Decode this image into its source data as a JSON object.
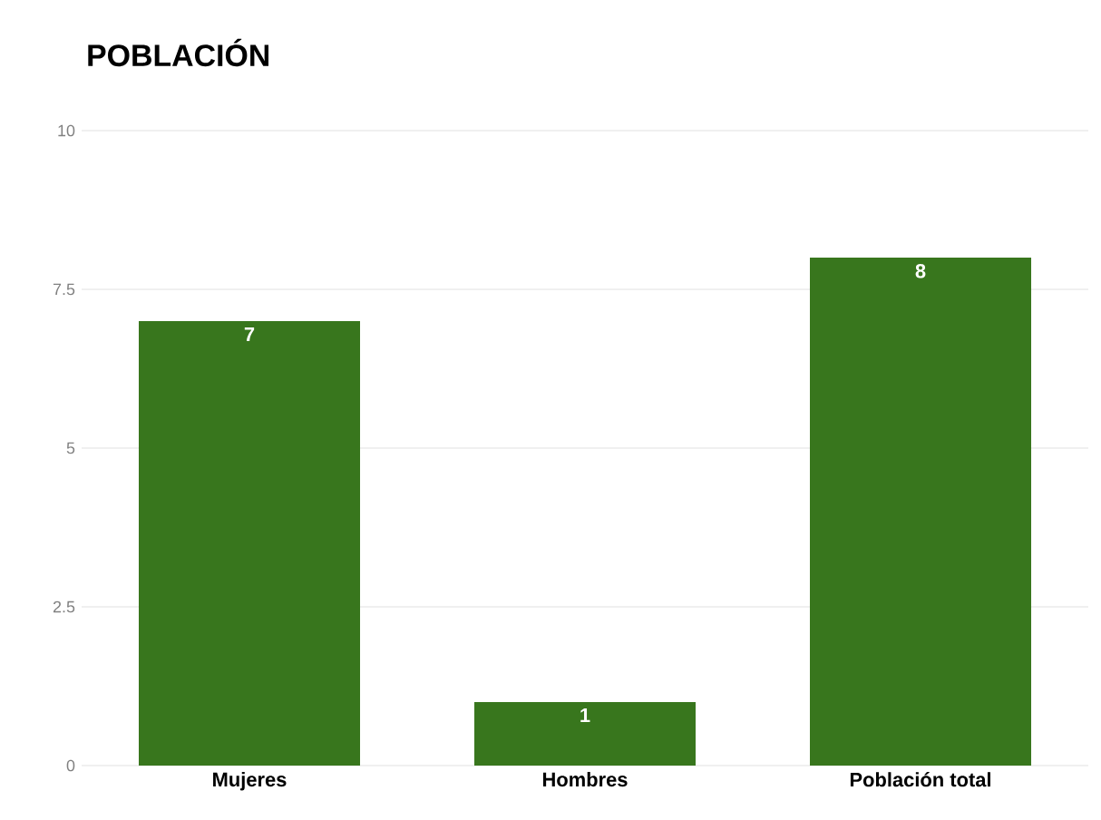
{
  "chart_data": {
    "type": "bar",
    "title": "POBLACIÓN",
    "categories": [
      "Mujeres",
      "Hombres",
      "Población total"
    ],
    "values": [
      7,
      1,
      8
    ],
    "color": "#38761d",
    "ylim": [
      0,
      10
    ],
    "yticks": [
      0,
      2.5,
      5,
      7.5,
      10
    ],
    "grid": "y",
    "data_labels": true
  }
}
